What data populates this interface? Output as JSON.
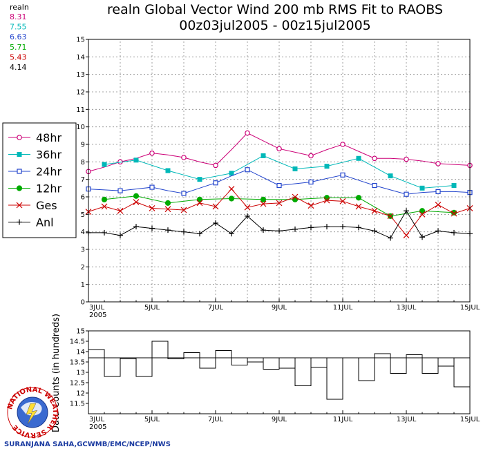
{
  "title": {
    "line1": "realn Global Vector Wind 200 mb RMS Fit to RAOBS",
    "line2": "00z03jul2005 - 00z15jul2005"
  },
  "summary": {
    "label": "realn",
    "values": [
      "8.31",
      "7.55",
      "6.63",
      "5.71",
      "5.43",
      "4.14"
    ],
    "colors": [
      "#cc0077",
      "#00b8b8",
      "#2244cc",
      "#00aa00",
      "#cc0000",
      "#000000"
    ]
  },
  "legend": [
    {
      "name": "48hr",
      "color": "#cc0077",
      "marker": "circle-open"
    },
    {
      "name": "36hr",
      "color": "#00b8b8",
      "marker": "square-filled"
    },
    {
      "name": "24hr",
      "color": "#2244cc",
      "marker": "square-open"
    },
    {
      "name": "12hr",
      "color": "#00aa00",
      "marker": "circle-filled"
    },
    {
      "name": "Ges",
      "color": "#cc0000",
      "marker": "x"
    },
    {
      "name": "Anl",
      "color": "#000000",
      "marker": "plus"
    }
  ],
  "x_axis": {
    "tick_labels": [
      "3JUL",
      "5JUL",
      "7JUL",
      "9JUL",
      "11JUL",
      "13JUL",
      "15JUL"
    ],
    "year_label": "2005",
    "x_range": [
      0,
      24
    ]
  },
  "chart_data": [
    {
      "type": "line",
      "ylim": [
        0,
        15
      ],
      "yticks": [
        "0",
        "1",
        "2",
        "3",
        "4",
        "5",
        "6",
        "7",
        "8",
        "9",
        "10",
        "11",
        "12",
        "13",
        "14",
        "15"
      ],
      "grid": true,
      "legend_placement": "left",
      "x": [
        0,
        1,
        2,
        3,
        4,
        5,
        6,
        7,
        8,
        9,
        10,
        11,
        12,
        13,
        14,
        15,
        16,
        17,
        18,
        19,
        20,
        21,
        22,
        23,
        24
      ],
      "series": [
        {
          "name": "48hr",
          "color": "#cc0077",
          "values": [
            7.45,
            7.7,
            8.0,
            8.2,
            8.5,
            8.4,
            8.25,
            8.0,
            7.8,
            8.7,
            9.65,
            9.2,
            8.75,
            8.55,
            8.35,
            8.7,
            9.0,
            8.6,
            8.2,
            8.2,
            8.15,
            8.05,
            7.9,
            7.85,
            7.8
          ],
          "marker_every": [
            0,
            2,
            4,
            6,
            8,
            10,
            12,
            14,
            16,
            18,
            20,
            22,
            24
          ]
        },
        {
          "name": "36hr",
          "color": "#00b8b8",
          "values": [
            null,
            7.85,
            null,
            8.1,
            null,
            7.5,
            null,
            7.0,
            null,
            7.35,
            null,
            8.35,
            null,
            7.6,
            null,
            7.75,
            null,
            8.2,
            null,
            7.2,
            null,
            6.5,
            null,
            6.65,
            null
          ],
          "marker_every": [
            1,
            3,
            5,
            7,
            9,
            11,
            13,
            15,
            17,
            19,
            21,
            23
          ]
        },
        {
          "name": "24hr",
          "color": "#2244cc",
          "values": [
            6.45,
            6.4,
            6.35,
            6.45,
            6.55,
            6.35,
            6.2,
            6.5,
            6.8,
            7.2,
            7.55,
            7.1,
            6.65,
            6.75,
            6.85,
            7.05,
            7.25,
            6.95,
            6.65,
            6.4,
            6.15,
            6.25,
            6.3,
            6.3,
            6.25
          ],
          "marker_every": [
            0,
            2,
            4,
            6,
            8,
            10,
            12,
            14,
            16,
            18,
            20,
            22,
            24
          ]
        },
        {
          "name": "12hr",
          "color": "#00aa00",
          "values": [
            null,
            5.85,
            null,
            6.05,
            null,
            5.65,
            null,
            5.85,
            null,
            5.9,
            null,
            5.85,
            null,
            5.85,
            null,
            5.95,
            null,
            5.95,
            null,
            4.9,
            null,
            5.2,
            null,
            5.1,
            null
          ],
          "marker_every": [
            1,
            3,
            5,
            7,
            9,
            11,
            13,
            15,
            17,
            19,
            21,
            23
          ]
        },
        {
          "name": "Ges",
          "color": "#cc0000",
          "values": [
            5.15,
            5.45,
            5.2,
            5.7,
            5.35,
            5.3,
            5.25,
            5.65,
            5.45,
            6.45,
            5.4,
            5.6,
            5.65,
            6.0,
            5.5,
            5.8,
            5.75,
            5.45,
            5.2,
            4.9,
            3.8,
            5.0,
            5.55,
            5.05,
            5.35
          ],
          "marker_every": [
            0,
            1,
            2,
            3,
            4,
            5,
            6,
            7,
            8,
            9,
            10,
            11,
            12,
            13,
            14,
            15,
            16,
            17,
            18,
            19,
            20,
            21,
            22,
            23,
            24
          ]
        },
        {
          "name": "Anl",
          "color": "#000000",
          "values": [
            3.95,
            3.95,
            3.8,
            4.3,
            4.2,
            4.1,
            4.0,
            3.9,
            4.5,
            3.9,
            4.9,
            4.1,
            4.05,
            4.15,
            4.25,
            4.3,
            4.3,
            4.25,
            4.05,
            3.65,
            5.2,
            3.7,
            4.05,
            3.95,
            3.9
          ],
          "marker_every": [
            0,
            1,
            2,
            3,
            4,
            5,
            6,
            7,
            8,
            9,
            10,
            11,
            12,
            13,
            14,
            15,
            16,
            17,
            18,
            19,
            20,
            21,
            22,
            23,
            24
          ]
        }
      ]
    },
    {
      "type": "bar",
      "style": "step",
      "ylabel": "Data Counts (in hundreds)",
      "ylim": [
        11,
        15
      ],
      "yticks": [
        "11.5",
        "12",
        "12.5",
        "13",
        "13.5",
        "14",
        "14.5",
        "15"
      ],
      "reference_line": 13.7,
      "x": [
        0,
        1,
        2,
        3,
        4,
        5,
        6,
        7,
        8,
        9,
        10,
        11,
        12,
        13,
        14,
        15,
        16,
        17,
        18,
        19,
        20,
        21,
        22,
        23
      ],
      "values": [
        14.1,
        12.8,
        13.65,
        12.8,
        14.5,
        13.65,
        13.95,
        13.2,
        14.05,
        13.35,
        13.5,
        13.15,
        13.2,
        12.35,
        13.25,
        11.7,
        13.7,
        12.6,
        13.9,
        12.95,
        13.85,
        12.95,
        13.3,
        12.3
      ]
    }
  ],
  "credit": "SURANJANA SAHA,GCWMB/EMC/NCEP/NWS",
  "logo": {
    "text": "NATIONAL WEATHER SERVICE"
  }
}
